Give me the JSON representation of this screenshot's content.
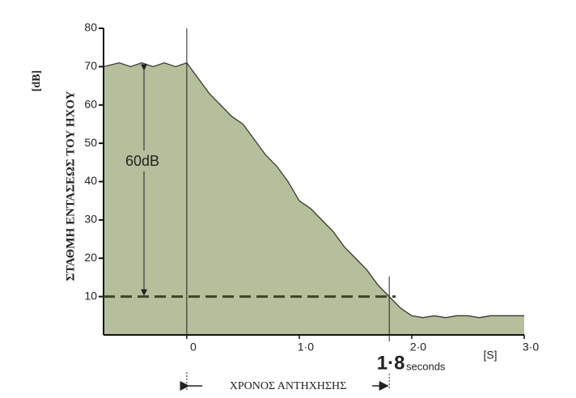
{
  "chart_data": {
    "type": "area",
    "y_label": "ΣΤΑΘΜΗ ΕΝΤΑΣΕΩΣ ΤΟΥ ΗΧΟΥ",
    "y_unit": "[dB]",
    "x_unit": "[S]",
    "x_span_label": "ΧΡΟΝΟΣ ΑΝΤΗΧΗΣΗΣ",
    "decay_label": "60dB",
    "decay_range": [
      70,
      10
    ],
    "reference_level": 10,
    "reverberation_time": {
      "value": 1.8,
      "label": "1·8"
    },
    "reverberation_unit": "seconds",
    "x": [
      -0.74,
      -0.6,
      -0.5,
      -0.4,
      -0.3,
      -0.2,
      -0.1,
      0,
      0.1,
      0.2,
      0.3,
      0.4,
      0.5,
      0.6,
      0.7,
      0.8,
      0.9,
      1.0,
      1.1,
      1.2,
      1.3,
      1.4,
      1.5,
      1.6,
      1.7,
      1.8,
      1.9,
      2.0,
      2.1,
      2.2,
      2.3,
      2.4,
      2.5,
      2.6,
      2.7,
      2.8,
      2.9,
      3.0
    ],
    "values": [
      70,
      71,
      70,
      71,
      70,
      71,
      70,
      71,
      67,
      63,
      60,
      57,
      55,
      51,
      47,
      44,
      40,
      35,
      33,
      30,
      27,
      23,
      20,
      17,
      13,
      10,
      7,
      5,
      4.5,
      5,
      4.5,
      5,
      5,
      4.5,
      5,
      5,
      5,
      5
    ],
    "color": "#b6bf9c",
    "line_color": "#3a3a30",
    "xlim": [
      -0.74,
      3.0
    ],
    "ylim": [
      0,
      80
    ],
    "xticks": [
      {
        "value": 0,
        "label": "0"
      },
      {
        "value": 1,
        "label": "1·0"
      },
      {
        "value": 2,
        "label": "2·0"
      },
      {
        "value": 3,
        "label": "3·0"
      }
    ],
    "yticks": [
      10,
      20,
      30,
      40,
      50,
      60,
      70,
      80
    ]
  }
}
